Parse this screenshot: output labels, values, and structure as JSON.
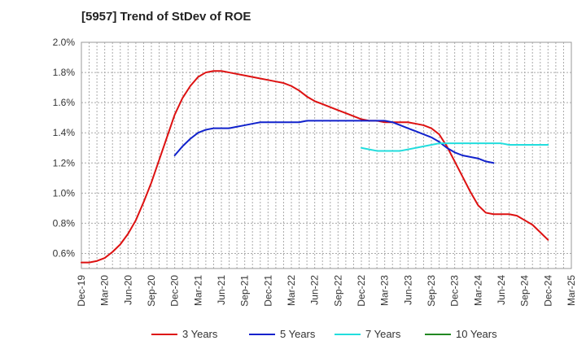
{
  "chart_data": {
    "type": "line",
    "title": "[5957]  Trend of StDev of ROE",
    "xlabel": "",
    "ylabel": "",
    "ylim": [
      0.5,
      2.0
    ],
    "y_ticks": [
      "0.6%",
      "0.8%",
      "1.0%",
      "1.2%",
      "1.4%",
      "1.6%",
      "1.8%",
      "2.0%"
    ],
    "y_tick_values": [
      0.6,
      0.8,
      1.0,
      1.2,
      1.4,
      1.6,
      1.8,
      2.0
    ],
    "x_ticks": [
      "Dec-19",
      "Mar-20",
      "Jun-20",
      "Sep-20",
      "Dec-20",
      "Mar-21",
      "Jun-21",
      "Sep-21",
      "Dec-21",
      "Mar-22",
      "Jun-22",
      "Sep-22",
      "Dec-22",
      "Mar-23",
      "Jun-23",
      "Sep-23",
      "Dec-23",
      "Mar-24",
      "Jun-24",
      "Sep-24",
      "Dec-24",
      "Mar-25"
    ],
    "grid": true,
    "legend_position": "bottom",
    "series": [
      {
        "name": "3 Years",
        "color": "#dd1111",
        "values": [
          0.54,
          0.54,
          0.55,
          0.57,
          0.61,
          0.66,
          0.73,
          0.82,
          0.94,
          1.07,
          1.22,
          1.37,
          1.52,
          1.63,
          1.71,
          1.77,
          1.8,
          1.81,
          1.81,
          1.8,
          1.79,
          1.78,
          1.77,
          1.76,
          1.75,
          1.74,
          1.73,
          1.71,
          1.68,
          1.64,
          1.61,
          1.59,
          1.57,
          1.55,
          1.53,
          1.51,
          1.49,
          1.48,
          1.48,
          1.47,
          1.47,
          1.47,
          1.47,
          1.46,
          1.45,
          1.43,
          1.39,
          1.31,
          1.21,
          1.11,
          1.01,
          0.92,
          0.87,
          0.86,
          0.86,
          0.86,
          0.85,
          0.82,
          0.79,
          0.74,
          0.69
        ]
      },
      {
        "name": "5 Years",
        "color": "#1122cc",
        "start_index": 12,
        "values": [
          1.25,
          1.31,
          1.36,
          1.4,
          1.42,
          1.43,
          1.43,
          1.43,
          1.44,
          1.45,
          1.46,
          1.47,
          1.47,
          1.47,
          1.47,
          1.47,
          1.47,
          1.48,
          1.48,
          1.48,
          1.48,
          1.48,
          1.48,
          1.48,
          1.48,
          1.48,
          1.48,
          1.48,
          1.47,
          1.45,
          1.43,
          1.41,
          1.39,
          1.37,
          1.34,
          1.3,
          1.27,
          1.25,
          1.24,
          1.23,
          1.21,
          1.2
        ]
      },
      {
        "name": "7 Years",
        "color": "#22dddd",
        "start_index": 36,
        "values": [
          1.3,
          1.29,
          1.28,
          1.28,
          1.28,
          1.28,
          1.29,
          1.3,
          1.31,
          1.32,
          1.33,
          1.33,
          1.33,
          1.33,
          1.33,
          1.33,
          1.33,
          1.33,
          1.33,
          1.32,
          1.32,
          1.32,
          1.32,
          1.32,
          1.32
        ]
      },
      {
        "name": "10 Years",
        "color": "#228822",
        "start_index": 0,
        "values": []
      }
    ]
  }
}
